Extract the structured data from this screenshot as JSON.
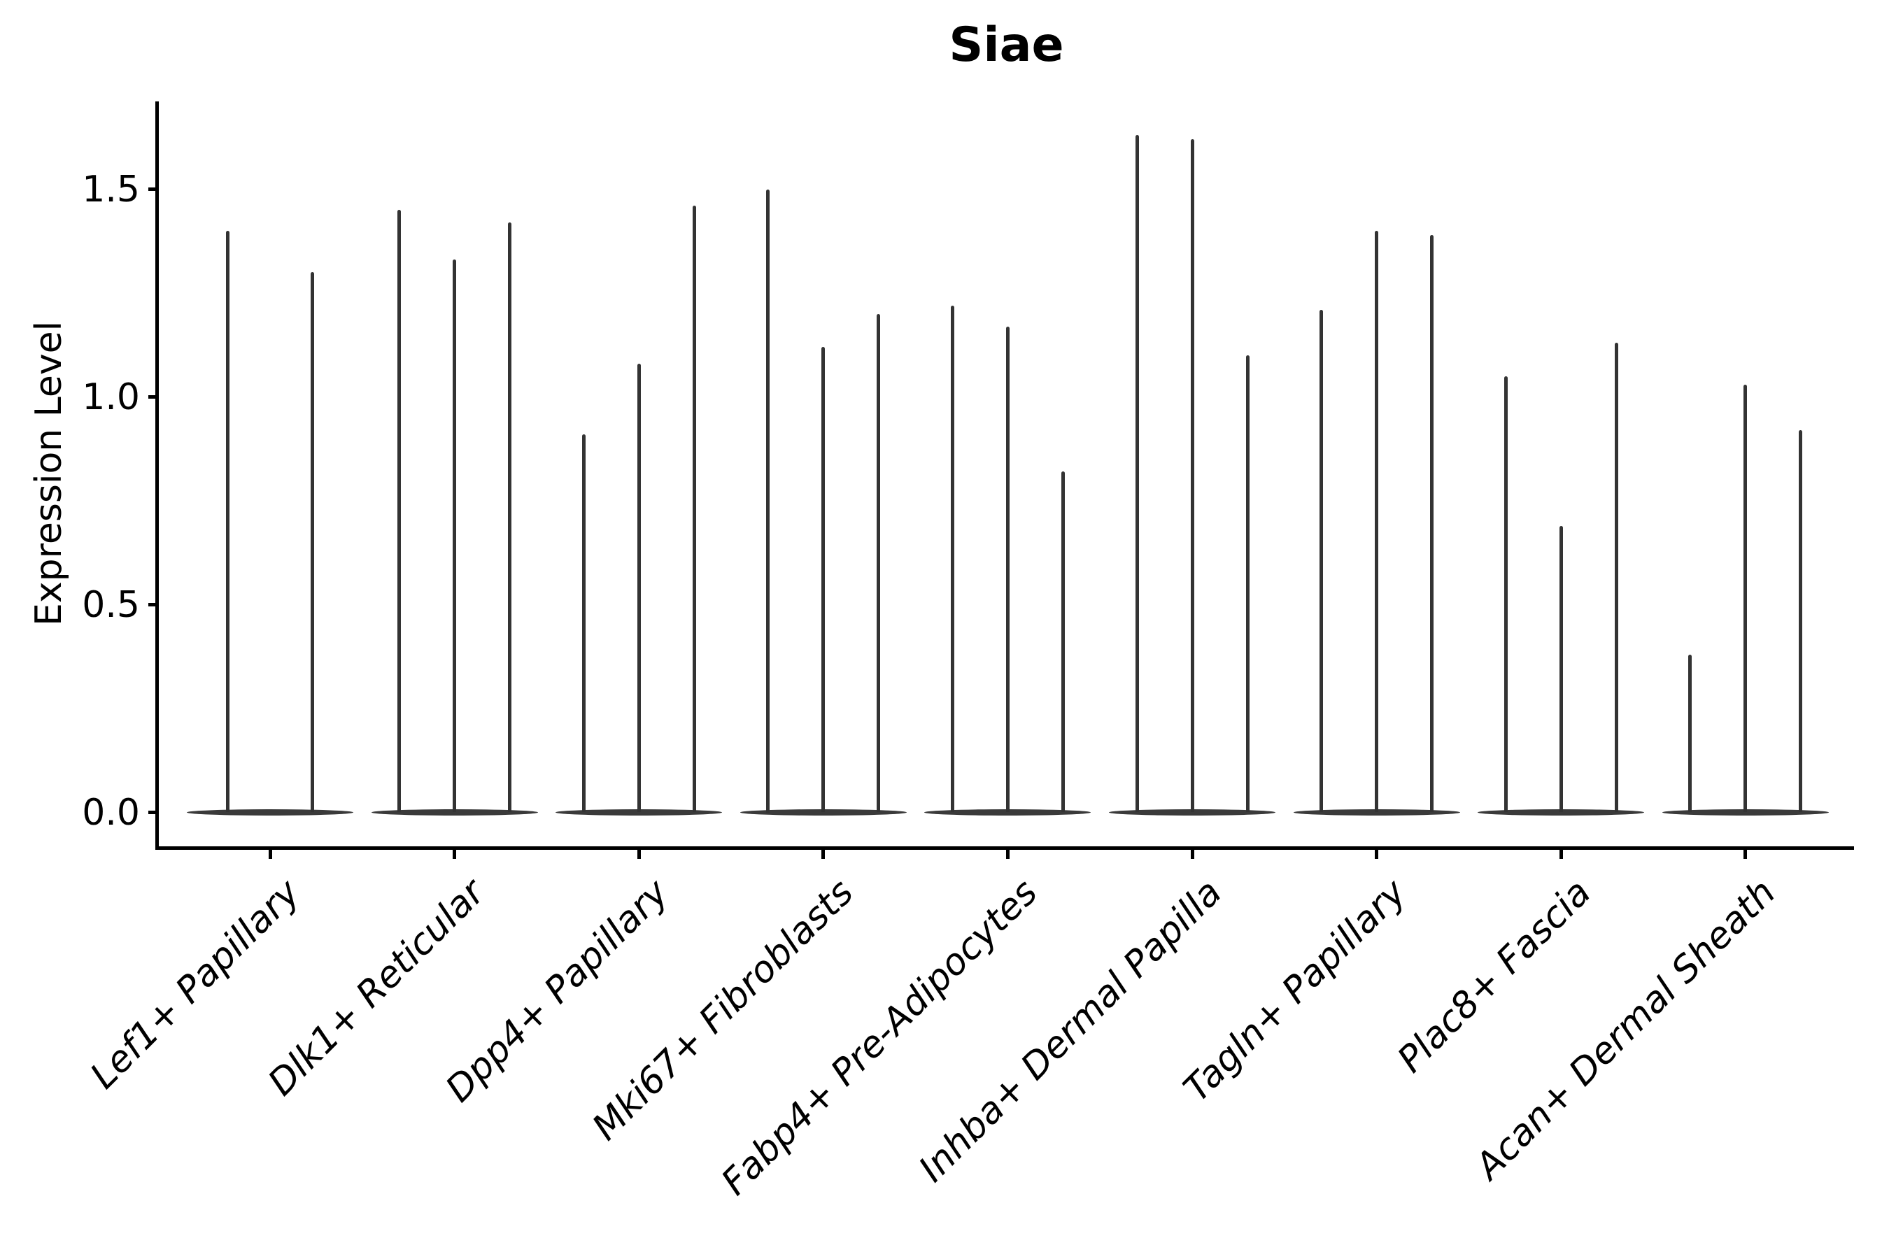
{
  "figure": {
    "title": "Siae",
    "ylabel": "Expression Level"
  },
  "chart_data": {
    "type": "violin",
    "title": "Siae",
    "xlabel": "",
    "ylabel": "Expression Level",
    "ylim": [
      -0.08,
      1.72
    ],
    "yticks": [
      0.0,
      0.5,
      1.0,
      1.5
    ],
    "grid": false,
    "legend_position": "none",
    "description": "Sparse single-cell expression violins: each violin is a wide flat mass at 0 with a thin spike rising to its maximum expression value. Groups of 2-3 violins per cluster.",
    "categories": [
      "Lef1+ Papillary",
      "Dlk1+ Reticular",
      "Dpp4+ Papillary",
      "Mki67+ Fibroblasts",
      "Fabp4+ Pre-Adipocytes",
      "Inhba+ Dermal Papilla",
      "Tagln+ Papillary",
      "Plac8+ Fascia",
      "Acan+ Dermal Sheath"
    ],
    "groups": [
      {
        "category": "Lef1+ Papillary",
        "violin_maxima": [
          1.4,
          1.3
        ]
      },
      {
        "category": "Dlk1+ Reticular",
        "violin_maxima": [
          1.45,
          1.33,
          1.42
        ]
      },
      {
        "category": "Dpp4+ Papillary",
        "violin_maxima": [
          0.91,
          1.08,
          1.46
        ]
      },
      {
        "category": "Mki67+ Fibroblasts",
        "violin_maxima": [
          1.5,
          1.12,
          1.2
        ]
      },
      {
        "category": "Fabp4+ Pre-Adipocytes",
        "violin_maxima": [
          1.22,
          1.17,
          0.82
        ]
      },
      {
        "category": "Inhba+ Dermal Papilla",
        "violin_maxima": [
          1.63,
          1.62,
          1.1
        ]
      },
      {
        "category": "Tagln+ Papillary",
        "violin_maxima": [
          1.21,
          1.4,
          1.39
        ]
      },
      {
        "category": "Plac8+ Fascia",
        "violin_maxima": [
          1.05,
          0.69,
          1.13
        ]
      },
      {
        "category": "Acan+ Dermal Sheath",
        "violin_maxima": [
          0.38,
          1.03,
          0.92
        ]
      }
    ],
    "colors": {
      "violin": "#333333",
      "violin_base": "#3a3a3a",
      "spines": "#000000",
      "text": "#000000",
      "background": "#ffffff"
    }
  }
}
